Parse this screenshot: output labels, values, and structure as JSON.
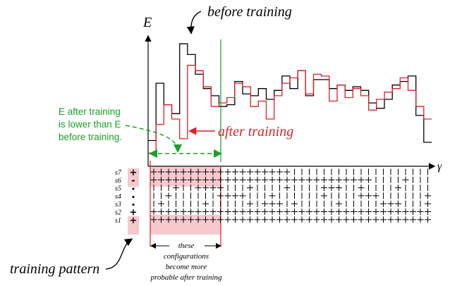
{
  "labels": {
    "before_training": "before training",
    "after_training": "after training",
    "energy_axis": "E",
    "gamma_axis": "γ",
    "green_note_line1": "E after training",
    "green_note_line2": "is lower than E",
    "green_note_line3": "before training.",
    "training_pattern": "training pattern",
    "configs_line1": "these",
    "configs_line2": "configurations",
    "configs_line3": "become more",
    "configs_line4": "probable after training"
  },
  "row_labels": [
    "s7",
    "s6",
    "s5",
    "s4",
    "s3",
    "s2",
    "s1"
  ],
  "training_pattern_signs": [
    "+",
    "-",
    "•",
    "•",
    "•",
    "+",
    "+"
  ],
  "colors": {
    "before": "#000000",
    "after": "#e0202a",
    "note": "#1aa02a",
    "highlight": "#f7c9cc"
  },
  "chart_data": {
    "type": "line",
    "series": [
      {
        "name": "before training",
        "values": [
          12,
          44,
          32,
          27,
          66,
          60,
          49,
          41,
          37,
          31,
          32,
          45,
          38,
          37,
          41,
          35,
          40,
          48,
          41,
          51,
          37,
          46,
          46,
          41,
          43,
          40,
          42,
          40,
          33,
          30,
          35,
          43,
          45,
          48,
          26,
          11
        ]
      },
      {
        "name": "after training",
        "values": [
          5,
          21,
          32,
          24,
          13,
          54,
          51,
          42,
          31,
          33,
          36,
          44,
          42,
          31,
          34,
          24,
          37,
          44,
          47,
          51,
          38,
          49,
          48,
          34,
          43,
          36,
          41,
          37,
          29,
          35,
          39,
          41,
          47,
          40,
          31,
          24
        ]
      }
    ],
    "xlabel": "γ",
    "ylabel": "E"
  }
}
